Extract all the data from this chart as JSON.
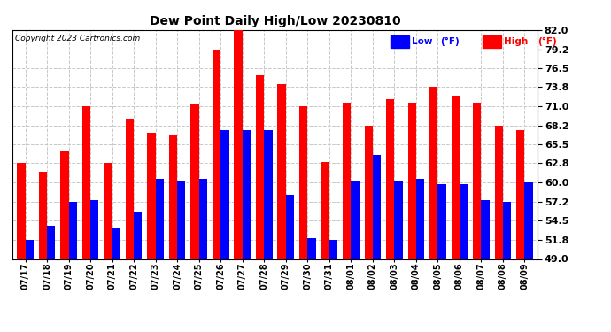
{
  "title": "Dew Point Daily High/Low 20230810",
  "copyright": "Copyright 2023 Cartronics.com",
  "legend_low": "Low",
  "legend_high": "High",
  "legend_unit": "(°F)",
  "dates": [
    "07/17",
    "07/18",
    "07/19",
    "07/20",
    "07/21",
    "07/22",
    "07/23",
    "07/24",
    "07/25",
    "07/26",
    "07/27",
    "07/28",
    "07/29",
    "07/30",
    "07/31",
    "08/01",
    "08/02",
    "08/03",
    "08/04",
    "08/05",
    "08/06",
    "08/07",
    "08/08",
    "08/09"
  ],
  "high": [
    62.8,
    61.5,
    64.5,
    71.0,
    62.8,
    69.2,
    67.2,
    66.8,
    71.2,
    79.2,
    82.0,
    75.5,
    74.2,
    71.0,
    63.0,
    71.5,
    68.2,
    72.0,
    71.5,
    73.8,
    72.5,
    71.5,
    68.2,
    67.5
  ],
  "low": [
    51.8,
    53.8,
    57.2,
    57.5,
    53.5,
    55.8,
    60.5,
    60.2,
    60.5,
    67.5,
    67.5,
    67.5,
    58.2,
    52.0,
    51.8,
    60.2,
    64.0,
    60.2,
    60.5,
    59.8,
    59.8,
    57.5,
    57.2,
    60.0
  ],
  "high_color": "#ff0000",
  "low_color": "#0000ff",
  "bg_color": "#ffffff",
  "grid_color": "#c8c8c8",
  "yticks": [
    49.0,
    51.8,
    54.5,
    57.2,
    60.0,
    62.8,
    65.5,
    68.2,
    71.0,
    73.8,
    76.5,
    79.2,
    82.0
  ],
  "ymin": 49.0,
  "ymax": 82.0,
  "bar_width": 0.38
}
